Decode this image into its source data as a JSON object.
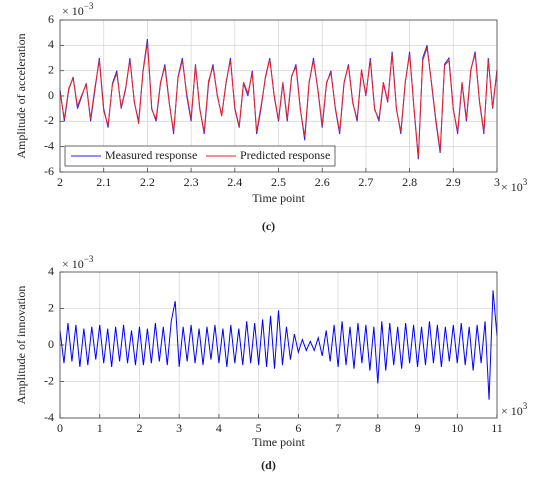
{
  "chart_data": [
    {
      "type": "line",
      "x_label": "Time point",
      "y_label": "Amplitude of acceleration",
      "caption": "(c)",
      "y_scale_base": "× 10",
      "y_scale_exponent": "−3",
      "x_scale_base": "× 10",
      "x_scale_exponent": "3",
      "xlim": [
        2,
        3
      ],
      "xticks": [
        2,
        2.1,
        2.2,
        2.3,
        2.4,
        2.5,
        2.6,
        2.7,
        2.8,
        2.9,
        3
      ],
      "ylim": [
        -6,
        6
      ],
      "yticks": [
        -6,
        -4,
        -2,
        0,
        2,
        4,
        6
      ],
      "grid": true,
      "legend": "lower left",
      "x": [
        2,
        2.01,
        2.02,
        2.03,
        2.04,
        2.05,
        2.06,
        2.07,
        2.08,
        2.09,
        2.1,
        2.11,
        2.12,
        2.13,
        2.14,
        2.15,
        2.16,
        2.17,
        2.18,
        2.19,
        2.2,
        2.21,
        2.22,
        2.23,
        2.24,
        2.25,
        2.26,
        2.27,
        2.28,
        2.29,
        2.3,
        2.31,
        2.32,
        2.33,
        2.34,
        2.35,
        2.36,
        2.37,
        2.38,
        2.39,
        2.4,
        2.41,
        2.42,
        2.43,
        2.44,
        2.45,
        2.46,
        2.47,
        2.48,
        2.49,
        2.5,
        2.51,
        2.52,
        2.53,
        2.54,
        2.55,
        2.56,
        2.57,
        2.58,
        2.59,
        2.6,
        2.61,
        2.62,
        2.63,
        2.64,
        2.65,
        2.66,
        2.67,
        2.68,
        2.69,
        2.7,
        2.71,
        2.72,
        2.73,
        2.74,
        2.75,
        2.76,
        2.77,
        2.78,
        2.79,
        2.8,
        2.81,
        2.82,
        2.83,
        2.84,
        2.85,
        2.86,
        2.87,
        2.88,
        2.89,
        2.9,
        2.91,
        2.92,
        2.93,
        2.94,
        2.95,
        2.96,
        2.97,
        2.98,
        2.99,
        3
      ],
      "series": [
        {
          "name": "Measured response",
          "color": "#2222ff",
          "values": [
            0.5,
            -2,
            0.5,
            1.5,
            -1,
            0,
            1,
            -2,
            0.5,
            3,
            -1,
            -2.5,
            1,
            2,
            -1,
            0.5,
            3,
            -0.5,
            -2,
            2,
            4.5,
            -1,
            -2,
            1,
            2.5,
            -0.5,
            -3,
            1.5,
            3,
            0,
            -2,
            2.5,
            -1,
            -3,
            1,
            2.5,
            0,
            -1.5,
            1,
            3,
            -1,
            -2.5,
            1,
            0,
            2,
            -3,
            -1,
            1.5,
            3,
            0,
            -2,
            1,
            -2,
            1.5,
            2.5,
            -1,
            -3.5,
            1,
            3,
            0.5,
            -2.5,
            1,
            2,
            -1,
            -3,
            1,
            2.5,
            -0.5,
            -2,
            2,
            0,
            3,
            -1,
            -2,
            1,
            -0.5,
            3.5,
            -1,
            -3,
            1,
            3.5,
            -1,
            -5,
            3,
            4,
            1,
            -2,
            -4.5,
            2.5,
            3,
            -1,
            -3,
            1,
            -2,
            2,
            3.5,
            -0.5,
            -3,
            3,
            -1,
            2
          ]
        },
        {
          "name": "Predicted response",
          "color": "#ee2222",
          "values": [
            0.3,
            -1.8,
            0.6,
            1.4,
            -0.8,
            0.1,
            0.9,
            -1.8,
            0.7,
            2.8,
            -1.2,
            -2.3,
            0.9,
            1.8,
            -0.9,
            0.6,
            2.8,
            -0.4,
            -2.2,
            1.9,
            4.2,
            -1.1,
            -1.8,
            1.1,
            2.3,
            -0.6,
            -2.8,
            1.4,
            2.8,
            0.2,
            -1.8,
            2.4,
            -1.1,
            -2.8,
            1.2,
            2.3,
            0.1,
            -1.6,
            1.1,
            2.8,
            -0.9,
            -2.4,
            1.1,
            0.2,
            1.8,
            -2.8,
            -0.8,
            1.4,
            2.9,
            0.1,
            -1.9,
            1.1,
            -1.8,
            1.6,
            2.3,
            -1.1,
            -3.2,
            1.1,
            2.8,
            0.6,
            -2.3,
            1.1,
            1.8,
            -0.9,
            -2.8,
            1.1,
            2.4,
            -0.6,
            -1.8,
            2.1,
            0.1,
            2.8,
            -1.1,
            -1.8,
            1.1,
            -0.4,
            3.3,
            -1.1,
            -2.8,
            1.1,
            3.3,
            -0.9,
            -4.8,
            2.8,
            3.8,
            1.1,
            -1.8,
            -4.3,
            2.4,
            2.8,
            -1.1,
            -2.8,
            1.1,
            -1.8,
            2.1,
            3.3,
            -0.4,
            -2.8,
            2.8,
            -0.9,
            2.1
          ]
        }
      ]
    },
    {
      "type": "line",
      "x_label": "Time point",
      "y_label": "Amplitude of innovation",
      "caption": "(d)",
      "y_scale_base": "× 10",
      "y_scale_exponent": "−3",
      "x_scale_base": "× 10",
      "x_scale_exponent": "3",
      "xlim": [
        0,
        11
      ],
      "xticks": [
        0,
        1,
        2,
        3,
        4,
        5,
        6,
        7,
        8,
        9,
        10,
        11
      ],
      "ylim": [
        -4,
        4
      ],
      "yticks": [
        -4,
        -2,
        0,
        2,
        4
      ],
      "grid": true,
      "x": [
        0,
        0.1,
        0.2,
        0.3,
        0.4,
        0.5,
        0.6,
        0.7,
        0.8,
        0.9,
        1,
        1.1,
        1.2,
        1.3,
        1.4,
        1.5,
        1.6,
        1.7,
        1.8,
        1.9,
        2,
        2.1,
        2.2,
        2.3,
        2.4,
        2.5,
        2.6,
        2.7,
        2.8,
        2.9,
        3,
        3.1,
        3.2,
        3.3,
        3.4,
        3.5,
        3.6,
        3.7,
        3.8,
        3.9,
        4,
        4.1,
        4.2,
        4.3,
        4.4,
        4.5,
        4.6,
        4.7,
        4.8,
        4.9,
        5,
        5.1,
        5.2,
        5.3,
        5.4,
        5.5,
        5.6,
        5.7,
        5.8,
        5.9,
        6,
        6.1,
        6.2,
        6.3,
        6.4,
        6.5,
        6.6,
        6.7,
        6.8,
        6.9,
        7,
        7.1,
        7.2,
        7.3,
        7.4,
        7.5,
        7.6,
        7.7,
        7.8,
        7.9,
        8,
        8.1,
        8.2,
        8.3,
        8.4,
        8.5,
        8.6,
        8.7,
        8.8,
        8.9,
        9,
        9.1,
        9.2,
        9.3,
        9.4,
        9.5,
        9.6,
        9.7,
        9.8,
        9.9,
        10,
        10.1,
        10.2,
        10.3,
        10.4,
        10.5,
        10.6,
        10.7,
        10.8,
        10.9,
        11
      ],
      "series": [
        {
          "color": "#0000ff",
          "values": [
            0.8,
            -1.0,
            1.2,
            -0.9,
            1.1,
            -1.2,
            0.9,
            -1.1,
            1.0,
            -0.8,
            1.1,
            -1.0,
            0.9,
            -1.2,
            1.0,
            -0.9,
            1.1,
            -1.0,
            0.8,
            -1.1,
            1.0,
            -1.1,
            0.9,
            -1.0,
            1.2,
            -0.9,
            1.0,
            -1.1,
            1.3,
            2.4,
            -1.2,
            1.0,
            -0.9,
            1.1,
            -1.0,
            0.9,
            -1.1,
            1.0,
            -0.8,
            1.1,
            -1.0,
            0.9,
            -1.2,
            1.1,
            -1.0,
            0.9,
            -1.1,
            1.3,
            -1.0,
            1.2,
            -1.1,
            1.4,
            -1.2,
            1.6,
            -1.3,
            1.9,
            -1.1,
            1.0,
            -0.8,
            0.6,
            -0.4,
            0.3,
            -0.3,
            0.2,
            -0.3,
            0.4,
            -0.6,
            0.8,
            -0.9,
            1.1,
            -1.2,
            1.3,
            -1.1,
            1.0,
            -1.3,
            1.2,
            -1.0,
            1.1,
            -1.4,
            1.0,
            -2.1,
            1.3,
            -1.4,
            1.2,
            -1.1,
            1.0,
            -1.3,
            1.2,
            -1.0,
            1.1,
            -1.2,
            1.0,
            -1.1,
            1.3,
            -1.0,
            1.1,
            -1.2,
            1.0,
            -0.9,
            1.1,
            -1.0,
            1.2,
            -1.1,
            1.0,
            -1.4,
            1.1,
            -1.0,
            1.3,
            -3.0,
            3.0,
            0.5
          ]
        }
      ]
    }
  ]
}
